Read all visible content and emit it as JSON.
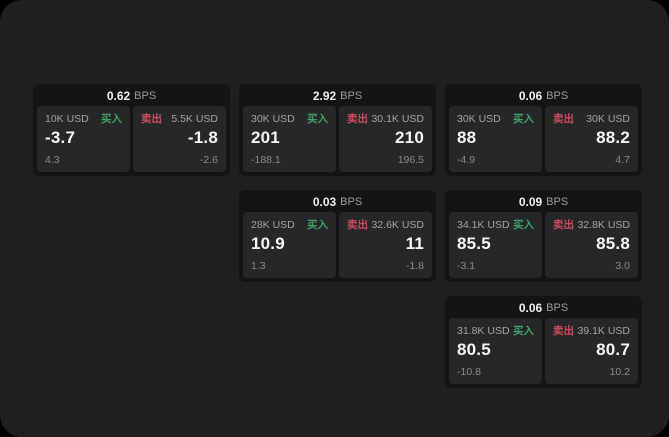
{
  "labels": {
    "bps_unit": "BPS",
    "buy": "买入",
    "sell": "卖出"
  },
  "colors": {
    "outer_bg": "#000000",
    "window_bg": "#1e1f20",
    "card_bg": "#131414",
    "tile_bg": "#262728",
    "buy_green": "#42a169",
    "sell_red": "#cd4b60",
    "value_text": "#f5f5f5",
    "muted_text": "#a3a3a3",
    "dim_text": "#8a8a8a"
  },
  "cards": [
    {
      "bps": "0.62",
      "buy": {
        "amount": "10K USD",
        "value": "-3.7",
        "sub": "4.3"
      },
      "sell": {
        "amount": "5.5K USD",
        "value": "-1.8",
        "sub": "-2.6"
      }
    },
    {
      "bps": "2.92",
      "buy": {
        "amount": "30K USD",
        "value": "201",
        "sub": "-188.1"
      },
      "sell": {
        "amount": "30.1K USD",
        "value": "210",
        "sub": "196.5"
      }
    },
    {
      "bps": "0.06",
      "buy": {
        "amount": "30K USD",
        "value": "88",
        "sub": "-4.9"
      },
      "sell": {
        "amount": "30K USD",
        "value": "88.2",
        "sub": "4.7"
      }
    },
    {
      "bps": "0.03",
      "buy": {
        "amount": "28K USD",
        "value": "10.9",
        "sub": "1.3"
      },
      "sell": {
        "amount": "32.6K USD",
        "value": "11",
        "sub": "-1.8"
      }
    },
    {
      "bps": "0.09",
      "buy": {
        "amount": "34.1K USD",
        "value": "85.5",
        "sub": "-3.1"
      },
      "sell": {
        "amount": "32.8K USD",
        "value": "85.8",
        "sub": "3.0"
      }
    },
    {
      "bps": "0.06",
      "buy": {
        "amount": "31.8K USD",
        "value": "80.5",
        "sub": "-10.8"
      },
      "sell": {
        "amount": "39.1K USD",
        "value": "80.7",
        "sub": "10.2"
      }
    }
  ]
}
